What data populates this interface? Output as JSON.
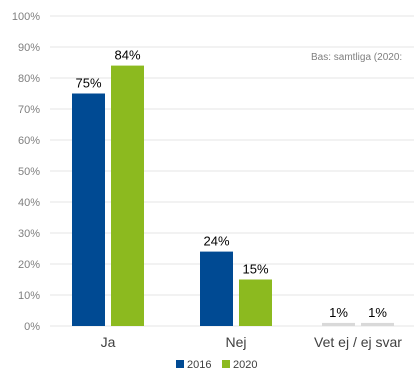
{
  "chart_data": {
    "type": "bar",
    "categories": [
      "Ja",
      "Nej",
      "Vet ej  / ej svar"
    ],
    "series": [
      {
        "name": "2016",
        "values": [
          75,
          24,
          1
        ],
        "labels": [
          "75%",
          "24%",
          "1%"
        ]
      },
      {
        "name": "2020",
        "values": [
          84,
          15,
          1
        ],
        "labels": [
          "84%",
          "15%",
          "1%"
        ]
      }
    ],
    "ylim": [
      0,
      100
    ],
    "yticks": [
      0,
      10,
      20,
      30,
      40,
      50,
      60,
      70,
      80,
      90,
      100
    ],
    "ytick_labels": [
      "0%",
      "10%",
      "20%",
      "30%",
      "40%",
      "50%",
      "60%",
      "70%",
      "80%",
      "90%",
      "100%"
    ],
    "note": "Bas: samtliga (2020:",
    "grid": true,
    "legend_position": "bottom",
    "colors": {
      "2016": "#004a93",
      "2020": "#8cba1f",
      "minor_bar": "#d9d9d9",
      "grid": "#e6e6e6"
    }
  }
}
